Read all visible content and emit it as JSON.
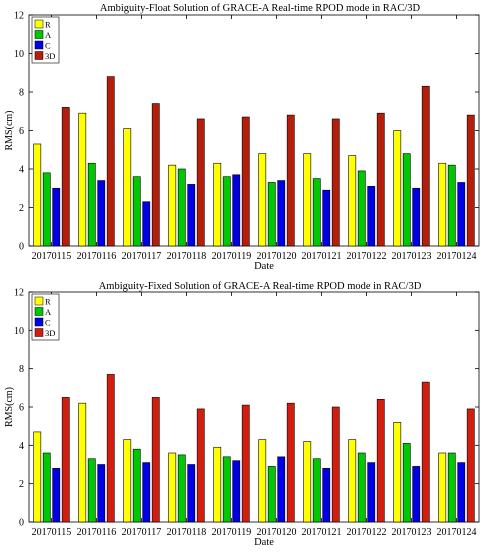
{
  "chart_data": [
    {
      "type": "bar",
      "title": "Ambiguity-Float Solution of GRACE-A Real-time RPOD mode in RAC/3D",
      "xlabel": "Date",
      "ylabel": "RMS(cm)",
      "ylim": [
        0,
        12
      ],
      "yticks": [
        0,
        2,
        4,
        6,
        8,
        10,
        12
      ],
      "legend_position": "top-left",
      "grid": false,
      "categories": [
        "20170115",
        "20170116",
        "20170117",
        "20170118",
        "20170119",
        "20170120",
        "20170121",
        "20170122",
        "20170123",
        "20170124"
      ],
      "series": [
        {
          "name": "R",
          "color": "#ffff00",
          "values": [
            5.3,
            6.9,
            6.1,
            4.2,
            4.3,
            4.8,
            4.8,
            4.7,
            6.0,
            4.3
          ]
        },
        {
          "name": "A",
          "color": "#00c800",
          "values": [
            3.8,
            4.3,
            3.6,
            4.0,
            3.6,
            3.3,
            3.5,
            3.9,
            4.8,
            4.2
          ]
        },
        {
          "name": "C",
          "color": "#0000e6",
          "values": [
            3.0,
            3.4,
            2.3,
            3.2,
            3.7,
            3.4,
            2.9,
            3.1,
            3.0,
            3.3
          ]
        },
        {
          "name": "3D",
          "color": "#b41e0a",
          "values": [
            7.2,
            8.8,
            7.4,
            6.6,
            6.7,
            6.8,
            6.6,
            6.9,
            8.3,
            6.8
          ]
        }
      ]
    },
    {
      "type": "bar",
      "title": "Ambiguity-Fixed Solution of GRACE-A Real-time RPOD mode in RAC/3D",
      "xlabel": "Date",
      "ylabel": "RMS(cm)",
      "ylim": [
        0,
        12
      ],
      "yticks": [
        0,
        2,
        4,
        6,
        8,
        10,
        12
      ],
      "legend_position": "top-left",
      "grid": false,
      "categories": [
        "20170115",
        "20170116",
        "20170117",
        "20170118",
        "20170119",
        "20170120",
        "20170121",
        "20170122",
        "20170123",
        "20170124"
      ],
      "series": [
        {
          "name": "R",
          "color": "#ffff00",
          "values": [
            4.7,
            6.2,
            4.3,
            3.6,
            3.9,
            4.3,
            4.2,
            4.3,
            5.2,
            3.6
          ]
        },
        {
          "name": "A",
          "color": "#00c800",
          "values": [
            3.6,
            3.3,
            3.8,
            3.5,
            3.4,
            2.9,
            3.3,
            3.6,
            4.1,
            3.6
          ]
        },
        {
          "name": "C",
          "color": "#0000e6",
          "values": [
            2.8,
            3.0,
            3.1,
            3.0,
            3.2,
            3.4,
            2.8,
            3.1,
            2.9,
            3.1
          ]
        },
        {
          "name": "3D",
          "color": "#d21e0f",
          "values": [
            6.5,
            7.7,
            6.5,
            5.9,
            6.1,
            6.2,
            6.0,
            6.4,
            7.3,
            5.9
          ]
        }
      ]
    }
  ]
}
